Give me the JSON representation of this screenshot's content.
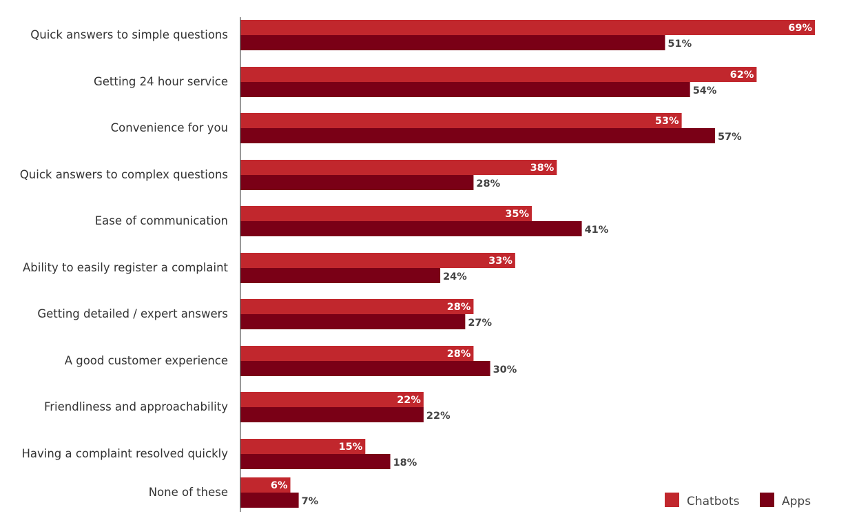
{
  "chart_data": {
    "type": "bar",
    "orientation": "horizontal",
    "categories": [
      "Quick answers to simple questions",
      "Getting 24 hour service",
      "Convenience for you",
      "Quick answers to complex questions",
      "Ease of communication",
      "Ability to easily register a complaint",
      "Getting detailed / expert answers",
      "A good customer experience",
      "Friendliness and approachability",
      "Having a complaint resolved quickly",
      "None of these"
    ],
    "series": [
      {
        "name": "Chatbots",
        "color": "#c1272d",
        "values": [
          69,
          62,
          53,
          38,
          35,
          33,
          28,
          28,
          22,
          15,
          6
        ]
      },
      {
        "name": "Apps",
        "color": "#7a0016",
        "values": [
          51,
          54,
          57,
          28,
          41,
          24,
          27,
          30,
          22,
          18,
          7
        ]
      }
    ],
    "value_suffix": "%",
    "xlim": [
      0,
      100
    ],
    "grid": false,
    "legend_position": "bottom-right"
  }
}
